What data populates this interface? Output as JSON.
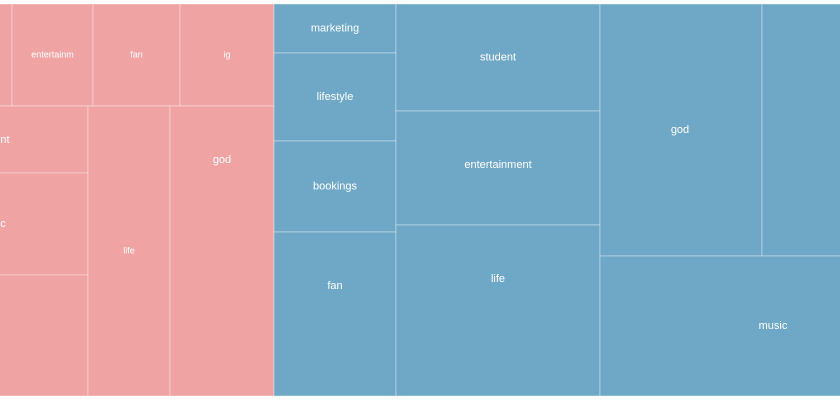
{
  "chart_data": {
    "type": "treemap",
    "groups": [
      {
        "color": "#f0a3a3",
        "items": [
          {
            "label": "",
            "value": 8
          },
          {
            "label": "entertainm",
            "value": 12
          },
          {
            "label": "fan",
            "value": 12
          },
          {
            "label": "ig",
            "value": 13
          },
          {
            "label": "nt",
            "value": 10
          },
          {
            "label": "c",
            "value": 16
          },
          {
            "label": "",
            "value": 22
          },
          {
            "label": "life",
            "value": 41
          },
          {
            "label": "god",
            "value": 49
          }
        ]
      },
      {
        "color": "#6fa8c7",
        "items": [
          {
            "label": "marketing",
            "value": 6
          },
          {
            "label": "lifestyle",
            "value": 12
          },
          {
            "label": "bookings",
            "value": 15
          },
          {
            "label": "fan",
            "value": 26
          },
          {
            "label": "student",
            "value": 29
          },
          {
            "label": "entertainment",
            "value": 31
          },
          {
            "label": "life",
            "value": 46
          },
          {
            "label": "god",
            "value": 47
          },
          {
            "label": "",
            "value": 23
          },
          {
            "label": "music",
            "value": 45
          }
        ]
      }
    ]
  }
}
